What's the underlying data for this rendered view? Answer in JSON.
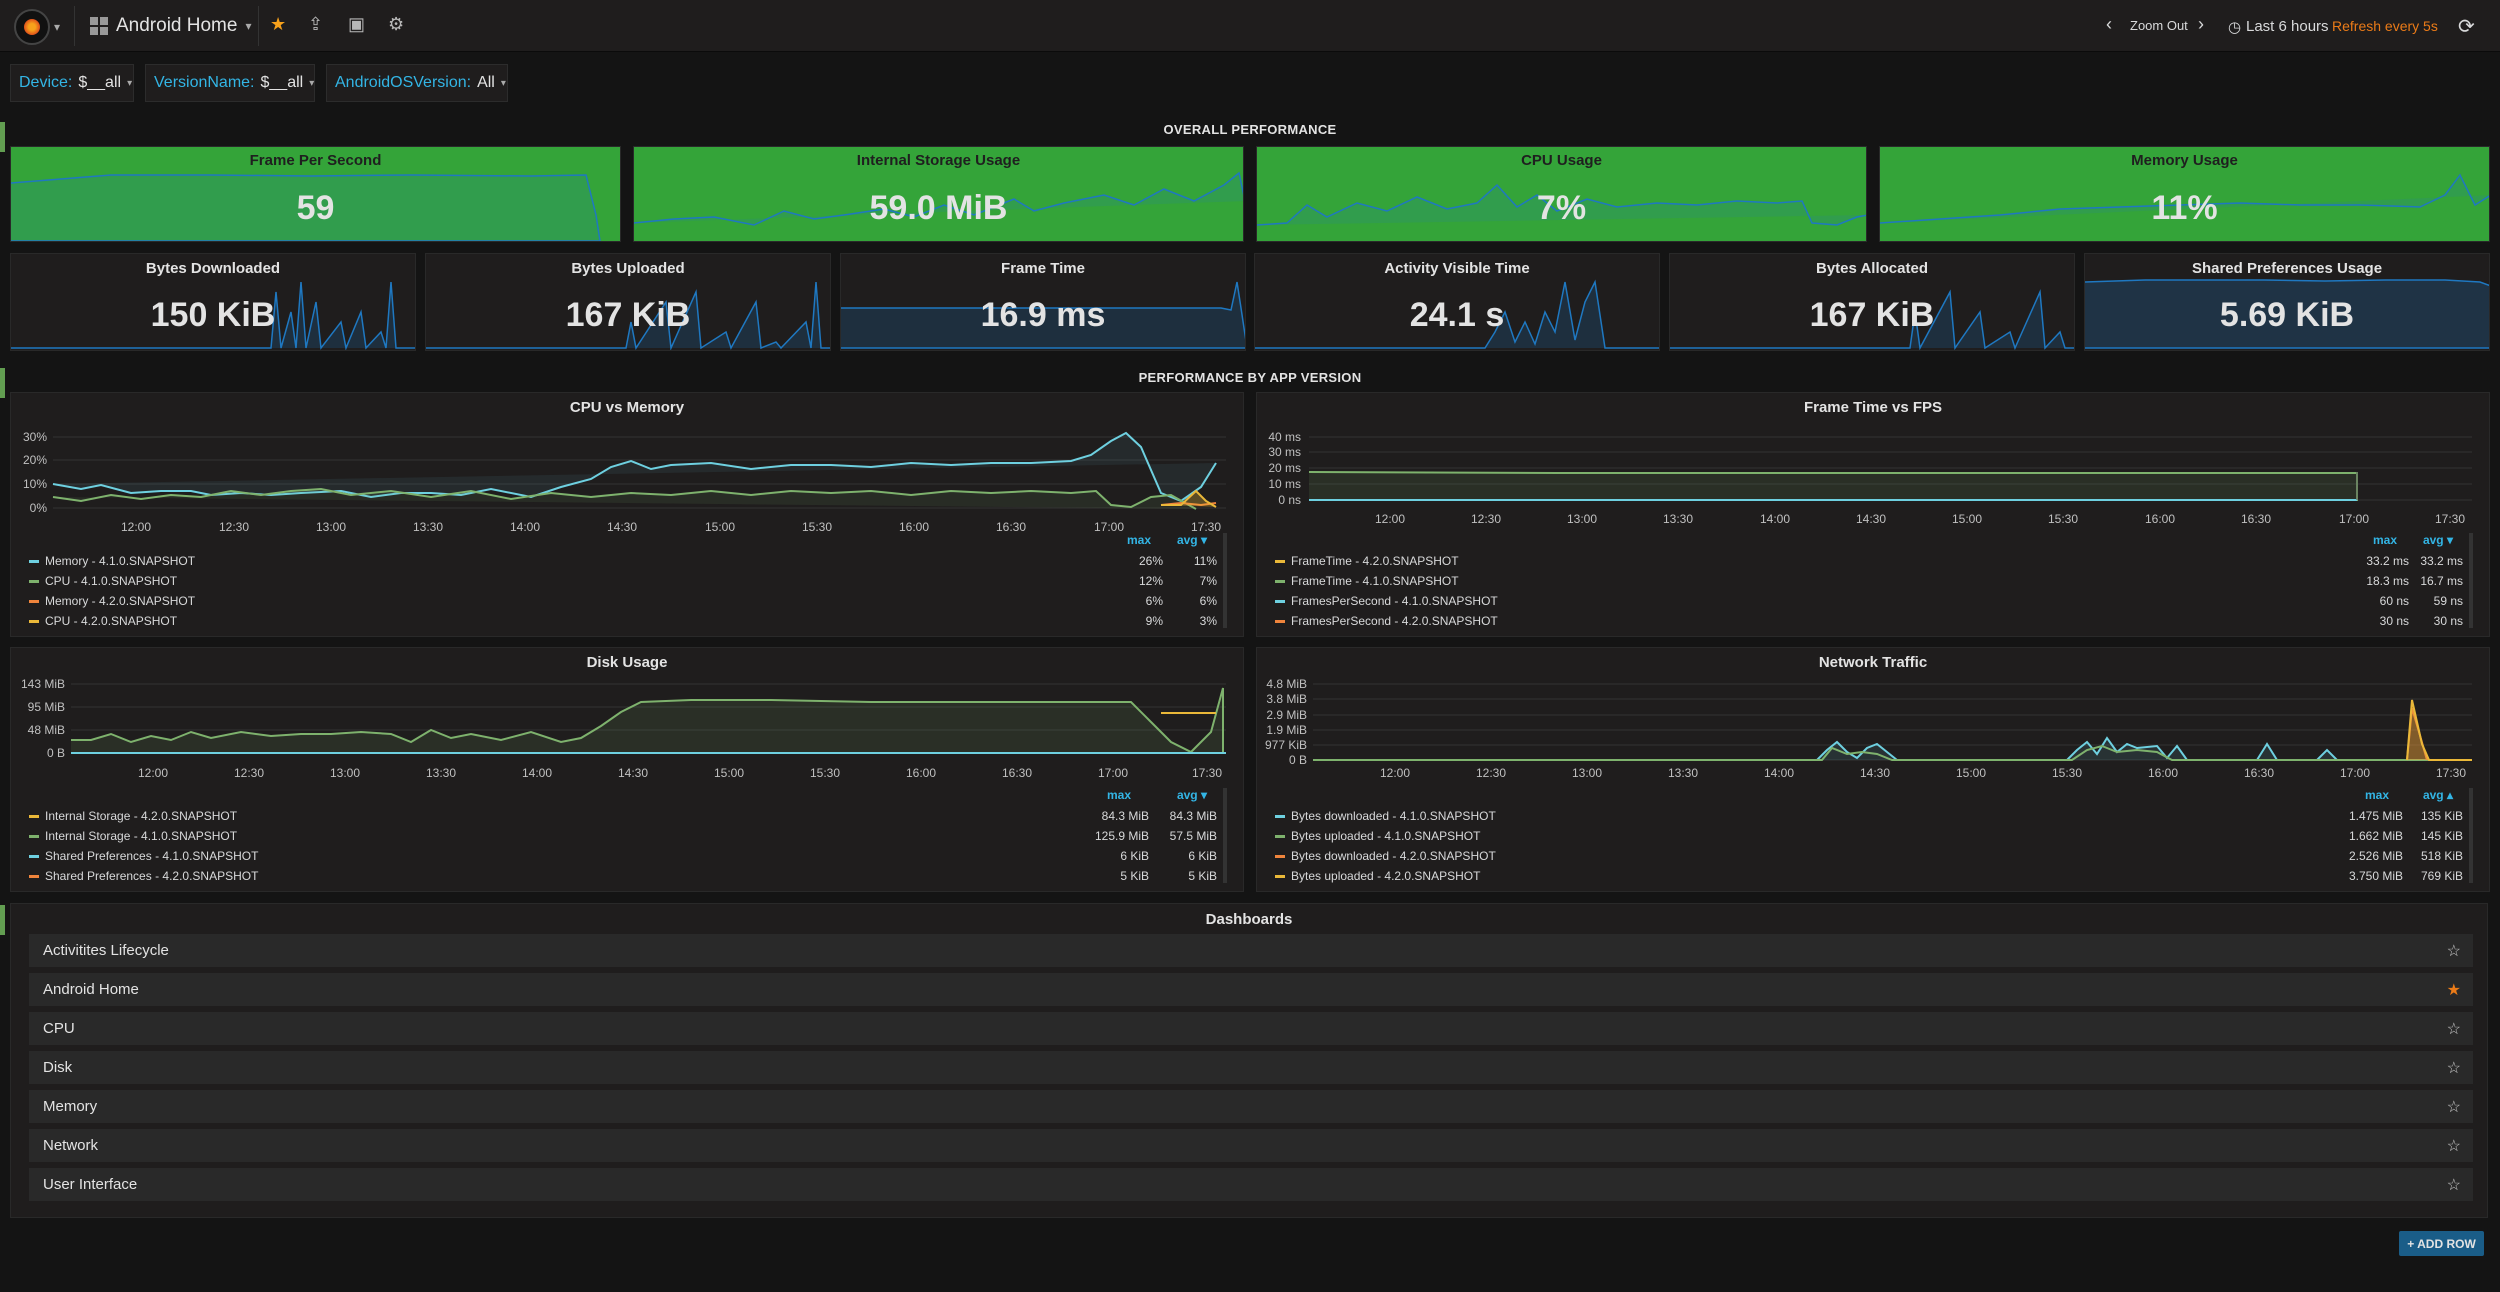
{
  "nav": {
    "dashboard_title": "Android Home",
    "zoom_out": "Zoom Out",
    "time_range": "Last 6 hours",
    "refresh": "Refresh every 5s"
  },
  "variables": [
    {
      "name": "Device:",
      "value": "$__all"
    },
    {
      "name": "VersionName:",
      "value": "$__all"
    },
    {
      "name": "AndroidOSVersion:",
      "value": "All"
    }
  ],
  "rows": {
    "overall": "OVERALL PERFORMANCE",
    "by_version": "PERFORMANCE BY APP VERSION"
  },
  "stats_top": [
    {
      "title": "Frame Per Second",
      "value": "59"
    },
    {
      "title": "Internal Storage Usage",
      "value": "59.0 MiB"
    },
    {
      "title": "CPU Usage",
      "value": "7%"
    },
    {
      "title": "Memory Usage",
      "value": "11%"
    }
  ],
  "stats_mid": [
    {
      "title": "Bytes Downloaded",
      "value": "150 KiB"
    },
    {
      "title": "Bytes Uploaded",
      "value": "167 KiB"
    },
    {
      "title": "Frame Time",
      "value": "16.9 ms"
    },
    {
      "title": "Activity Visible Time",
      "value": "24.1 s"
    },
    {
      "title": "Bytes Allocated",
      "value": "167 KiB"
    },
    {
      "title": "Shared Preferences Usage",
      "value": "5.69 KiB"
    }
  ],
  "x_ticks": [
    "12:00",
    "12:30",
    "13:00",
    "13:30",
    "14:00",
    "14:30",
    "15:00",
    "15:30",
    "16:00",
    "16:30",
    "17:00",
    "17:30"
  ],
  "graphs": [
    {
      "title": "CPU vs Memory",
      "y_ticks": [
        "30%",
        "20%",
        "10%",
        "0%"
      ],
      "legend_max": "max",
      "legend_avg": "avg ▾",
      "series": [
        {
          "name": "Memory - 4.1.0.SNAPSHOT",
          "max": "26%",
          "avg": "11%",
          "color": "#6ed0e0"
        },
        {
          "name": "CPU - 4.1.0.SNAPSHOT",
          "max": "12%",
          "avg": "7%",
          "color": "#7eb26d"
        },
        {
          "name": "Memory - 4.2.0.SNAPSHOT",
          "max": "6%",
          "avg": "6%",
          "color": "#ef843c"
        },
        {
          "name": "CPU - 4.2.0.SNAPSHOT",
          "max": "9%",
          "avg": "3%",
          "color": "#eab839"
        }
      ]
    },
    {
      "title": "Frame Time vs FPS",
      "y_ticks": [
        "40 ms",
        "30 ms",
        "20 ms",
        "10 ms",
        "0 ns"
      ],
      "legend_max": "max",
      "legend_avg": "avg ▾",
      "series": [
        {
          "name": "FrameTime - 4.2.0.SNAPSHOT",
          "max": "33.2 ms",
          "avg": "33.2 ms",
          "color": "#eab839"
        },
        {
          "name": "FrameTime - 4.1.0.SNAPSHOT",
          "max": "18.3 ms",
          "avg": "16.7 ms",
          "color": "#7eb26d"
        },
        {
          "name": "FramesPerSecond - 4.1.0.SNAPSHOT",
          "max": "60 ns",
          "avg": "59 ns",
          "color": "#6ed0e0"
        },
        {
          "name": "FramesPerSecond - 4.2.0.SNAPSHOT",
          "max": "30 ns",
          "avg": "30 ns",
          "color": "#ef843c"
        }
      ]
    },
    {
      "title": "Disk Usage",
      "y_ticks": [
        "143 MiB",
        "95 MiB",
        "48 MiB",
        "0 B"
      ],
      "legend_max": "max",
      "legend_avg": "avg ▾",
      "series": [
        {
          "name": "Internal Storage - 4.2.0.SNAPSHOT",
          "max": "84.3 MiB",
          "avg": "84.3 MiB",
          "color": "#eab839"
        },
        {
          "name": "Internal Storage - 4.1.0.SNAPSHOT",
          "max": "125.9 MiB",
          "avg": "57.5 MiB",
          "color": "#7eb26d"
        },
        {
          "name": "Shared Preferences - 4.1.0.SNAPSHOT",
          "max": "6 KiB",
          "avg": "6 KiB",
          "color": "#6ed0e0"
        },
        {
          "name": "Shared Preferences - 4.2.0.SNAPSHOT",
          "max": "5 KiB",
          "avg": "5 KiB",
          "color": "#ef843c"
        }
      ]
    },
    {
      "title": "Network Traffic",
      "y_ticks": [
        "4.8 MiB",
        "3.8 MiB",
        "2.9 MiB",
        "1.9 MiB",
        "977 KiB",
        "0 B"
      ],
      "legend_max": "max",
      "legend_avg": "avg ▴",
      "series": [
        {
          "name": "Bytes downloaded - 4.1.0.SNAPSHOT",
          "max": "1.475 MiB",
          "avg": "135 KiB",
          "color": "#6ed0e0"
        },
        {
          "name": "Bytes uploaded - 4.1.0.SNAPSHOT",
          "max": "1.662 MiB",
          "avg": "145 KiB",
          "color": "#7eb26d"
        },
        {
          "name": "Bytes downloaded - 4.2.0.SNAPSHOT",
          "max": "2.526 MiB",
          "avg": "518 KiB",
          "color": "#ef843c"
        },
        {
          "name": "Bytes uploaded - 4.2.0.SNAPSHOT",
          "max": "3.750 MiB",
          "avg": "769 KiB",
          "color": "#eab839"
        }
      ]
    }
  ],
  "dashboards": {
    "title": "Dashboards",
    "items": [
      {
        "label": "Activitites Lifecycle",
        "starred": false
      },
      {
        "label": "Android Home",
        "starred": true
      },
      {
        "label": "CPU",
        "starred": false
      },
      {
        "label": "Disk",
        "starred": false
      },
      {
        "label": "Memory",
        "starred": false
      },
      {
        "label": "Network",
        "starred": false
      },
      {
        "label": "User Interface",
        "starred": false
      }
    ]
  },
  "add_row": "+ ADD ROW",
  "colors": {
    "accent_blue": "#33b5e5",
    "stat_green": "#34a439",
    "refresh_orange": "#eb7b18",
    "sparkline_blue": "#1f78c1"
  },
  "icons": [
    "grafana-logo-icon",
    "dashboard-grid-icon",
    "star-icon",
    "share-icon",
    "save-icon",
    "gear-icon",
    "chevron-left-icon",
    "chevron-right-icon",
    "clock-icon",
    "refresh-icon"
  ]
}
